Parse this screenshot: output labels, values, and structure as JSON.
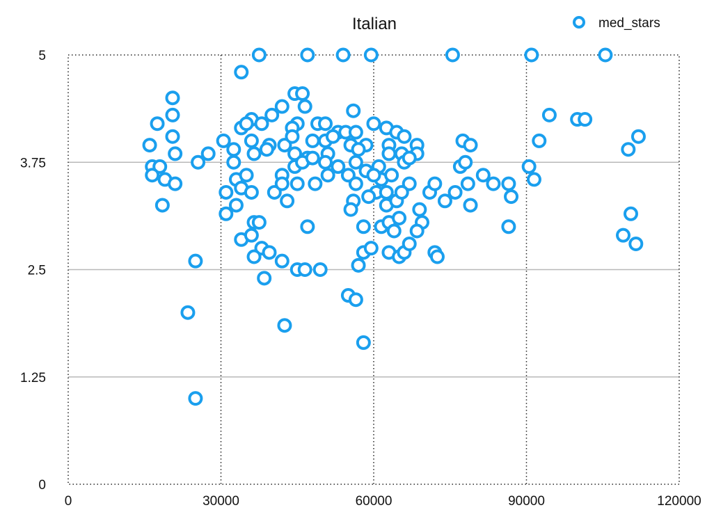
{
  "chart_data": {
    "type": "scatter",
    "title": "Italian",
    "xlabel": "",
    "ylabel": "",
    "xlim": [
      0,
      120000
    ],
    "ylim": [
      0,
      5
    ],
    "x_ticks": [
      "0",
      "30000",
      "60000",
      "90000",
      "120000"
    ],
    "y_ticks": [
      "0",
      "1.25",
      "2.5",
      "3.75",
      "5"
    ],
    "grid": {
      "horizontal": "solid-gray",
      "vertical": "dotted-black"
    },
    "legend": {
      "position": "top-right"
    },
    "series": [
      {
        "name": "med_stars",
        "color": "#1a9fee",
        "points": [
          [
            37500,
            5.0
          ],
          [
            47000,
            5.0
          ],
          [
            54000,
            5.0
          ],
          [
            59500,
            5.0
          ],
          [
            75500,
            5.0
          ],
          [
            91000,
            5.0
          ],
          [
            105500,
            5.0
          ],
          [
            34000,
            4.8
          ],
          [
            20500,
            4.5
          ],
          [
            44500,
            4.55
          ],
          [
            46000,
            4.55
          ],
          [
            46500,
            4.4
          ],
          [
            42000,
            4.4
          ],
          [
            56000,
            4.35
          ],
          [
            20500,
            4.3
          ],
          [
            36000,
            4.25
          ],
          [
            38000,
            4.2
          ],
          [
            40000,
            4.3
          ],
          [
            49000,
            4.2
          ],
          [
            50500,
            4.2
          ],
          [
            45000,
            4.2
          ],
          [
            60000,
            4.2
          ],
          [
            94500,
            4.3
          ],
          [
            100000,
            4.25
          ],
          [
            101500,
            4.25
          ],
          [
            17500,
            4.2
          ],
          [
            34000,
            4.15
          ],
          [
            35000,
            4.2
          ],
          [
            44000,
            4.15
          ],
          [
            53000,
            4.1
          ],
          [
            54500,
            4.1
          ],
          [
            56500,
            4.1
          ],
          [
            62500,
            4.15
          ],
          [
            64500,
            4.1
          ],
          [
            66000,
            4.05
          ],
          [
            20500,
            4.05
          ],
          [
            16000,
            3.95
          ],
          [
            30500,
            4.0
          ],
          [
            32500,
            3.9
          ],
          [
            36000,
            4.0
          ],
          [
            39500,
            3.95
          ],
          [
            42500,
            3.95
          ],
          [
            48000,
            4.0
          ],
          [
            50500,
            4.0
          ],
          [
            52000,
            4.05
          ],
          [
            55500,
            3.95
          ],
          [
            58500,
            3.95
          ],
          [
            63000,
            3.95
          ],
          [
            68500,
            3.95
          ],
          [
            77500,
            4.0
          ],
          [
            79000,
            3.95
          ],
          [
            92500,
            4.0
          ],
          [
            110000,
            3.9
          ],
          [
            112000,
            4.05
          ],
          [
            21000,
            3.85
          ],
          [
            27500,
            3.85
          ],
          [
            36500,
            3.85
          ],
          [
            39000,
            3.9
          ],
          [
            44500,
            3.85
          ],
          [
            51000,
            3.85
          ],
          [
            57000,
            3.9
          ],
          [
            63000,
            3.85
          ],
          [
            65500,
            3.85
          ],
          [
            68500,
            3.85
          ],
          [
            25500,
            3.75
          ],
          [
            32500,
            3.75
          ],
          [
            16500,
            3.7
          ],
          [
            18000,
            3.7
          ],
          [
            47000,
            3.8
          ],
          [
            50500,
            3.75
          ],
          [
            53000,
            3.7
          ],
          [
            56500,
            3.75
          ],
          [
            61000,
            3.7
          ],
          [
            66000,
            3.75
          ],
          [
            67000,
            3.8
          ],
          [
            77000,
            3.7
          ],
          [
            78000,
            3.75
          ],
          [
            90500,
            3.7
          ],
          [
            16500,
            3.6
          ],
          [
            19000,
            3.55
          ],
          [
            21000,
            3.5
          ],
          [
            33000,
            3.55
          ],
          [
            35000,
            3.6
          ],
          [
            42000,
            3.6
          ],
          [
            44500,
            3.7
          ],
          [
            46000,
            3.75
          ],
          [
            51000,
            3.6
          ],
          [
            55000,
            3.6
          ],
          [
            58500,
            3.65
          ],
          [
            61500,
            3.55
          ],
          [
            63500,
            3.6
          ],
          [
            81500,
            3.6
          ],
          [
            91500,
            3.55
          ],
          [
            31000,
            3.4
          ],
          [
            34000,
            3.45
          ],
          [
            36000,
            3.4
          ],
          [
            40500,
            3.4
          ],
          [
            42000,
            3.5
          ],
          [
            45000,
            3.5
          ],
          [
            48500,
            3.5
          ],
          [
            56500,
            3.5
          ],
          [
            60500,
            3.4
          ],
          [
            62500,
            3.4
          ],
          [
            67000,
            3.5
          ],
          [
            71000,
            3.4
          ],
          [
            72000,
            3.5
          ],
          [
            76000,
            3.4
          ],
          [
            78500,
            3.5
          ],
          [
            83500,
            3.5
          ],
          [
            86500,
            3.5
          ],
          [
            18500,
            3.25
          ],
          [
            33000,
            3.25
          ],
          [
            43000,
            3.3
          ],
          [
            56000,
            3.3
          ],
          [
            59000,
            3.35
          ],
          [
            62500,
            3.25
          ],
          [
            64500,
            3.3
          ],
          [
            65500,
            3.4
          ],
          [
            74000,
            3.3
          ],
          [
            79000,
            3.25
          ],
          [
            87000,
            3.35
          ],
          [
            31000,
            3.15
          ],
          [
            36500,
            3.05
          ],
          [
            37500,
            3.05
          ],
          [
            47000,
            3.0
          ],
          [
            55500,
            3.2
          ],
          [
            58000,
            3.0
          ],
          [
            61500,
            3.0
          ],
          [
            63000,
            3.05
          ],
          [
            65000,
            3.1
          ],
          [
            69000,
            3.2
          ],
          [
            69500,
            3.05
          ],
          [
            86500,
            3.0
          ],
          [
            110500,
            3.15
          ],
          [
            34000,
            2.85
          ],
          [
            36000,
            2.9
          ],
          [
            38000,
            2.75
          ],
          [
            39500,
            2.7
          ],
          [
            58000,
            2.7
          ],
          [
            63000,
            2.7
          ],
          [
            65000,
            2.65
          ],
          [
            66000,
            2.7
          ],
          [
            67000,
            2.8
          ],
          [
            72000,
            2.7
          ],
          [
            109000,
            2.9
          ],
          [
            111500,
            2.8
          ],
          [
            25000,
            2.6
          ],
          [
            36500,
            2.65
          ],
          [
            42000,
            2.6
          ],
          [
            45000,
            2.5
          ],
          [
            46500,
            2.5
          ],
          [
            49500,
            2.5
          ],
          [
            57000,
            2.55
          ],
          [
            38500,
            2.4
          ],
          [
            55000,
            2.2
          ],
          [
            56500,
            2.15
          ],
          [
            23500,
            2.0
          ],
          [
            42500,
            1.85
          ],
          [
            58000,
            1.65
          ],
          [
            25000,
            1.0
          ],
          [
            59500,
            2.75
          ],
          [
            64000,
            2.95
          ],
          [
            68500,
            2.95
          ],
          [
            72500,
            2.65
          ],
          [
            60000,
            3.6
          ],
          [
            48000,
            3.8
          ],
          [
            44000,
            4.05
          ]
        ]
      }
    ]
  }
}
